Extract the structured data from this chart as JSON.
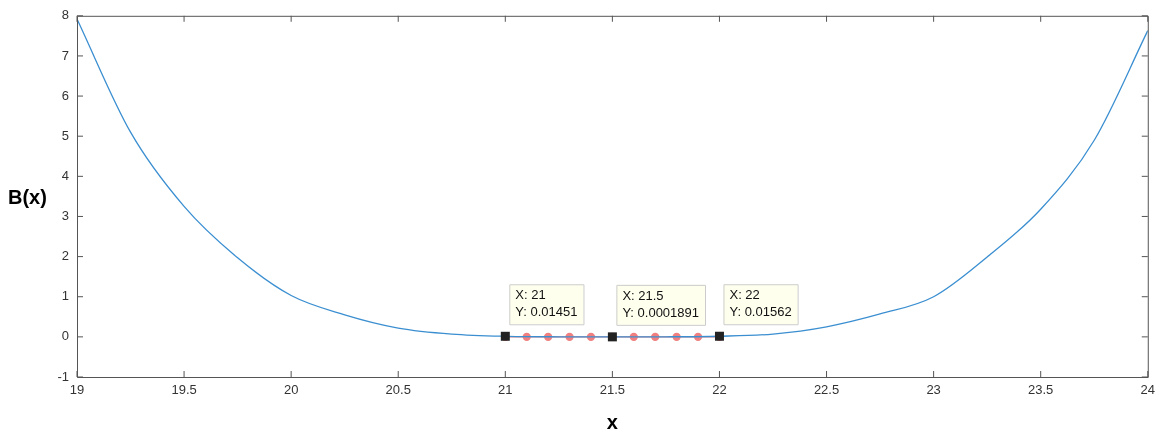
{
  "chart_data": {
    "type": "line",
    "xlabel": "x",
    "ylabel": "B(x)",
    "xlim": [
      19,
      24
    ],
    "ylim": [
      -1,
      8
    ],
    "xticks": [
      19,
      19.5,
      20,
      20.5,
      21,
      21.5,
      22,
      22.5,
      23,
      23.5,
      24
    ],
    "yticks": [
      -1,
      0,
      1,
      2,
      3,
      4,
      5,
      6,
      7,
      8
    ],
    "grid": false,
    "legend": false,
    "series": [
      {
        "color": "#3b8fd1",
        "marker": "none",
        "x": [
          19,
          19.25,
          19.5,
          19.75,
          20,
          20.25,
          20.5,
          20.75,
          21,
          21.25,
          21.5,
          21.75,
          22,
          22.25,
          22.5,
          22.75,
          23,
          23.25,
          23.5,
          23.75,
          24
        ],
        "values": [
          7.92,
          5.1,
          3.25,
          1.97,
          1.03,
          0.55,
          0.22,
          0.07,
          0.01451,
          0.002,
          0.0001891,
          0.002,
          0.01562,
          0.07,
          0.25,
          0.57,
          1.0,
          1.99,
          3.18,
          4.9,
          7.63
        ]
      },
      {
        "color": "#f08080",
        "marker": "circle",
        "x": [
          21,
          21.1,
          21.2,
          21.3,
          21.4,
          21.5,
          21.6,
          21.7,
          21.8,
          21.9,
          22
        ],
        "values": [
          0,
          0,
          0,
          0,
          0,
          0,
          0,
          0,
          0,
          0,
          0
        ]
      }
    ],
    "annotations": [
      {
        "text": "X: 21\nY: 0.01451",
        "x": 21,
        "y": 0.01451
      },
      {
        "text": "X: 21.5\nY: 0.0001891",
        "x": 21.5,
        "y": 0.0001891
      },
      {
        "text": "X: 22\nY: 0.01562",
        "x": 22,
        "y": 0.01562
      }
    ]
  }
}
